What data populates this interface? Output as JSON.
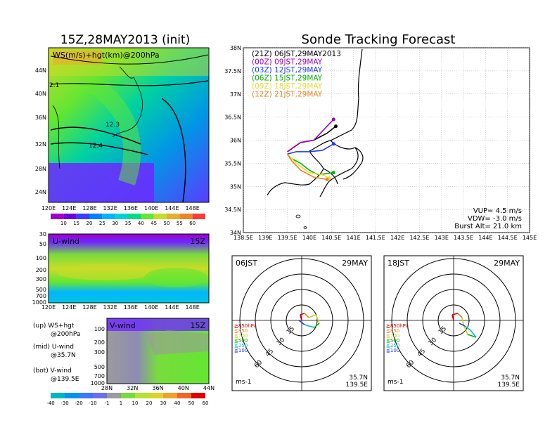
{
  "main_title": "Sonde Tracking Forecast",
  "init_panel": {
    "title": "15Z,28MAY2013 (init)",
    "overlay_label": "WS(m/s)+hgt(km)@200hPa",
    "hgt_labels": [
      "2.1",
      "12.3",
      "12.4"
    ],
    "lat_ticks": [
      "44N",
      "40N",
      "36N",
      "32N",
      "28N",
      "24N"
    ],
    "lon_ticks": [
      "120E",
      "124E",
      "128E",
      "132E",
      "136E",
      "140E",
      "144E",
      "148E"
    ],
    "colorbar_ticks": [
      "10",
      "15",
      "20",
      "25",
      "30",
      "35",
      "40",
      "45",
      "50",
      "55",
      "60"
    ],
    "colorbar_colors": [
      "#a000c8",
      "#6e00dc",
      "#3c3cff",
      "#0080ff",
      "#00b4ff",
      "#00d2d2",
      "#00dc82",
      "#64e632",
      "#c8dc28",
      "#e6af2d",
      "#f08228",
      "#fa3c3c"
    ]
  },
  "u_panel": {
    "label": "U-wind",
    "time": "15Z",
    "p_ticks": [
      "30",
      "50",
      "100",
      "200",
      "300",
      "500",
      "700",
      "1000"
    ],
    "lon_ticks": [
      "120E",
      "124E",
      "128E",
      "132E",
      "136E",
      "140E",
      "144E",
      "148E"
    ]
  },
  "v_panel": {
    "label": "V-wind",
    "time": "15Z",
    "p_ticks": [
      "100",
      "200",
      "300",
      "500",
      "700",
      "1000"
    ],
    "lat_ticks": [
      "28N",
      "32N",
      "36N",
      "40N",
      "44N"
    ]
  },
  "legend_notes": [
    {
      "line1": "(up) WS+hgt",
      "line2": "@200hPa"
    },
    {
      "line1": "(mid) U-wind",
      "line2": "@35.7N"
    },
    {
      "line1": "(bot) V-wind",
      "line2": "@139.5E"
    }
  ],
  "bottom_colorbar": {
    "ticks": [
      "-40",
      "-30",
      "-20",
      "-10",
      "-1",
      "1",
      "10",
      "20",
      "30",
      "40",
      "50",
      "60"
    ],
    "colors": [
      "#00b4c8",
      "#0096e6",
      "#3c78ff",
      "#6e6ee6",
      "#9b9b9b",
      "#78dc3c",
      "#b4e132",
      "#dcd228",
      "#f0a028",
      "#f06428",
      "#dc0000"
    ]
  },
  "chart_data": {
    "type": "line",
    "title": "Sonde Tracking Forecast",
    "xlim": [
      138.5,
      145
    ],
    "ylim": [
      34,
      38
    ],
    "x_ticks": [
      "138.5E",
      "139E",
      "139.5E",
      "140E",
      "140.5E",
      "141E",
      "141.5E",
      "142E",
      "142.5E",
      "143E",
      "143.5E",
      "144E",
      "144.5E",
      "145E"
    ],
    "y_ticks": [
      "38N",
      "37.5N",
      "37N",
      "36.5N",
      "36N",
      "35.5N",
      "35N",
      "34.5N",
      "34N"
    ],
    "legend": [
      {
        "run": "(21Z)",
        "time": "06JST,29MAY2013",
        "color": "#000000"
      },
      {
        "run": "(00Z)",
        "time": "09JST,29MAY",
        "color": "#a000c8"
      },
      {
        "run": "(03Z)",
        "time": "12JST,29MAY",
        "color": "#1e3cff"
      },
      {
        "run": "(06Z)",
        "time": "15JST,29MAY",
        "color": "#00b400"
      },
      {
        "run": "(09Z)",
        "time": "18JST,29MAY",
        "color": "#e6dc32"
      },
      {
        "run": "(12Z)",
        "time": "21JST,29MAY",
        "color": "#f08228"
      }
    ],
    "series": [
      {
        "name": "(21Z)",
        "x": [
          139.5,
          139.8,
          140.1,
          140.4,
          140.6
        ],
        "y": [
          35.75,
          35.95,
          36.0,
          36.15,
          36.3
        ]
      },
      {
        "name": "(00Z)",
        "x": [
          139.5,
          139.8,
          140.1,
          140.35,
          140.55
        ],
        "y": [
          35.75,
          35.95,
          36.0,
          36.25,
          36.45
        ]
      },
      {
        "name": "(03Z)",
        "x": [
          139.5,
          139.7,
          140.0,
          140.3,
          140.55
        ],
        "y": [
          35.7,
          35.75,
          35.75,
          35.78,
          35.92
        ]
      },
      {
        "name": "(06Z)",
        "x": [
          139.5,
          139.6,
          139.8,
          140.0,
          140.2,
          140.55
        ],
        "y": [
          35.7,
          35.6,
          35.5,
          35.35,
          35.25,
          35.3
        ]
      },
      {
        "name": "(09Z)",
        "x": [
          139.5,
          139.7,
          140.0,
          140.3,
          140.45
        ],
        "y": [
          35.7,
          35.5,
          35.3,
          35.25,
          35.18
        ]
      },
      {
        "name": "(12Z)",
        "x": [
          139.5,
          139.6,
          139.8,
          140.1,
          140.4
        ],
        "y": [
          35.7,
          35.55,
          35.35,
          35.2,
          35.15
        ]
      }
    ],
    "params": [
      "VUP= 4.5 m/s",
      "VDW= -3.0 m/s",
      "Burst Alt= 21.0 km"
    ]
  },
  "hodographs": [
    {
      "left": "06JST",
      "right": "29MAY",
      "ring_labels": [
        "15",
        "30",
        "45",
        "60"
      ],
      "levels": [
        "≧850hPa",
        "≦850",
        "≦700",
        "≦500",
        "≦250",
        "≦100"
      ],
      "unit": "ms-1",
      "lat": "35.7N",
      "lon": "139.5E"
    },
    {
      "left": "18JST",
      "right": "29MAY",
      "ring_labels": [
        "15",
        "30",
        "45",
        "60"
      ],
      "levels": [
        "≧850hPa",
        "≦850",
        "≦700",
        "≦500",
        "≦250",
        "≦100"
      ],
      "unit": "ms-1",
      "lat": "35.7N",
      "lon": "139.5E"
    }
  ],
  "level_colors": [
    "#dc0000",
    "#f08228",
    "#c8c828",
    "#00b400",
    "#00b4dc",
    "#1e3cff"
  ]
}
